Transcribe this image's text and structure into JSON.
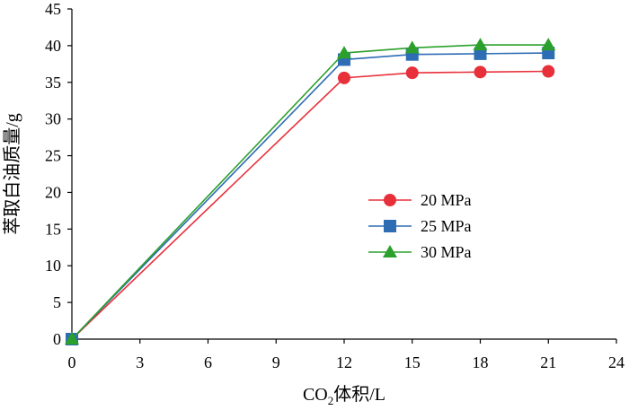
{
  "chart_data": {
    "type": "line",
    "title": "",
    "xlabel": "CO₂体积/L",
    "xlabel_parts": {
      "prefix": "CO",
      "subscript": "2",
      "suffix": "体积/L"
    },
    "ylabel": "萃取白油质量/g",
    "xlim": [
      0,
      24
    ],
    "ylim": [
      0,
      45
    ],
    "xticks": [
      0,
      3,
      6,
      9,
      12,
      15,
      18,
      21,
      24
    ],
    "yticks": [
      0,
      5,
      10,
      15,
      20,
      25,
      30,
      35,
      40,
      45
    ],
    "x": [
      0,
      12,
      15,
      18,
      21
    ],
    "grid": false,
    "legend_position": "center-right",
    "series": [
      {
        "name": "20 MPa",
        "color": "#e8303a",
        "marker": "circle",
        "values": [
          0,
          35.6,
          36.3,
          36.4,
          36.5
        ]
      },
      {
        "name": "25 MPa",
        "color": "#2e6db4",
        "marker": "square",
        "values": [
          0,
          38.1,
          38.8,
          38.9,
          39.0
        ]
      },
      {
        "name": "30 MPa",
        "color": "#2ca02c",
        "marker": "triangle",
        "values": [
          0,
          39.0,
          39.7,
          40.1,
          40.1
        ]
      }
    ]
  }
}
